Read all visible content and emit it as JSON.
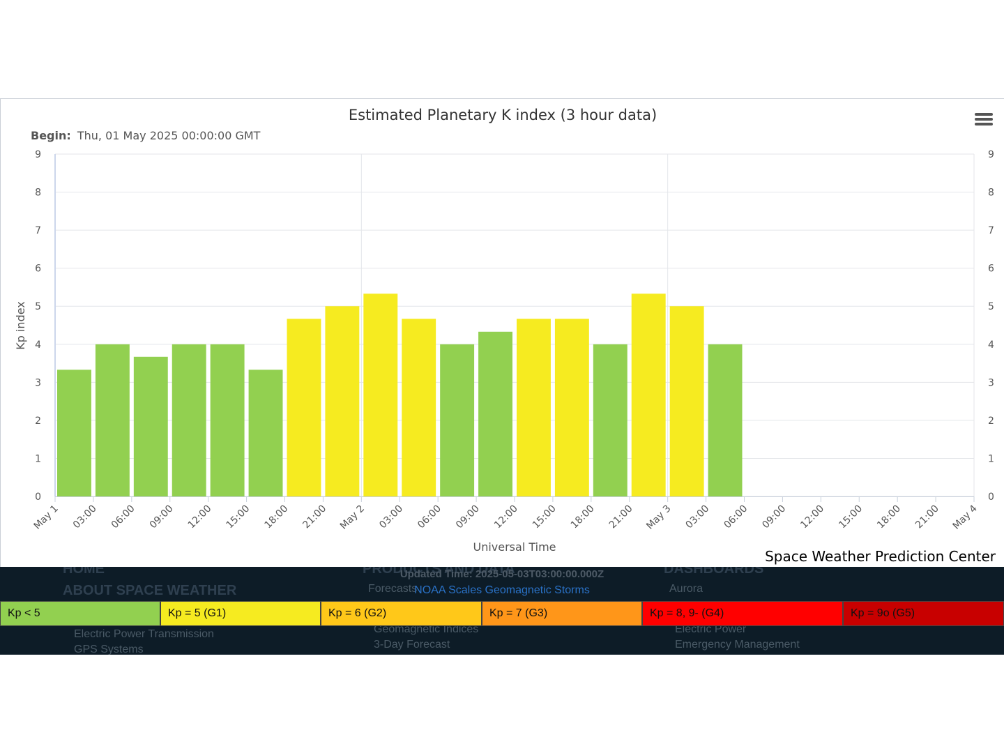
{
  "chart_data": {
    "type": "bar",
    "title": "Estimated Planetary K index (3 hour data)",
    "subtitle_label": "Begin:",
    "subtitle_value": "Thu, 01 May 2025 00:00:00 GMT",
    "ylabel": "Kp index",
    "xlabel": "Universal Time",
    "ylim": [
      0,
      9
    ],
    "yticks": [
      0,
      1,
      2,
      3,
      4,
      5,
      6,
      7,
      8,
      9
    ],
    "xticks": [
      "May 1",
      "03:00",
      "06:00",
      "09:00",
      "12:00",
      "15:00",
      "18:00",
      "21:00",
      "May 2",
      "03:00",
      "06:00",
      "09:00",
      "12:00",
      "15:00",
      "18:00",
      "21:00",
      "May 3",
      "03:00",
      "06:00",
      "09:00",
      "12:00",
      "15:00",
      "18:00",
      "21:00",
      "May 4"
    ],
    "values": [
      3.33,
      4.0,
      3.67,
      4.0,
      4.0,
      3.33,
      4.67,
      5.0,
      5.33,
      4.67,
      4.0,
      4.33,
      4.67,
      4.67,
      4.0,
      5.33,
      5.0,
      4.0
    ],
    "grid": true,
    "colors": {
      "below_g1": "#92d050",
      "g1": "#f6eb20",
      "g2": "#ffc819",
      "g3": "#ff9619",
      "g4": "#ff0000",
      "g5": "#c80000"
    }
  },
  "credit": "Space Weather Prediction Center",
  "updated_time": "Updated Time: 2025-05-03T03:00:00.000Z",
  "scales_link": "NOAA Scales Geomagnetic Storms",
  "legend": [
    {
      "label": "Kp < 5",
      "color": "#92d050"
    },
    {
      "label": "Kp = 5 (G1)",
      "color": "#f6eb20"
    },
    {
      "label": "Kp = 6 (G2)",
      "color": "#ffc819"
    },
    {
      "label": "Kp = 7 (G3)",
      "color": "#ff9619"
    },
    {
      "label": "Kp = 8, 9- (G4)",
      "color": "#ff0000"
    },
    {
      "label": "Kp = 9o (G5)",
      "color": "#c80000"
    }
  ],
  "background_nav": {
    "col1_head1": "HOME",
    "col1_head2": "ABOUT SPACE WEATHER",
    "col1_item1": "Electric Power Transmission",
    "col1_item2": "GPS Systems",
    "col2_head": "PRODUCTS AND DATA",
    "col2_item0": "Forecasts",
    "col2_item1": "Geomagnetic Indices",
    "col2_item2": "3-Day Forecast",
    "col3_head": "DASHBOARDS",
    "col3_item0": "Aurora",
    "col3_item1": "Electric Power",
    "col3_item2": "Emergency Management"
  }
}
